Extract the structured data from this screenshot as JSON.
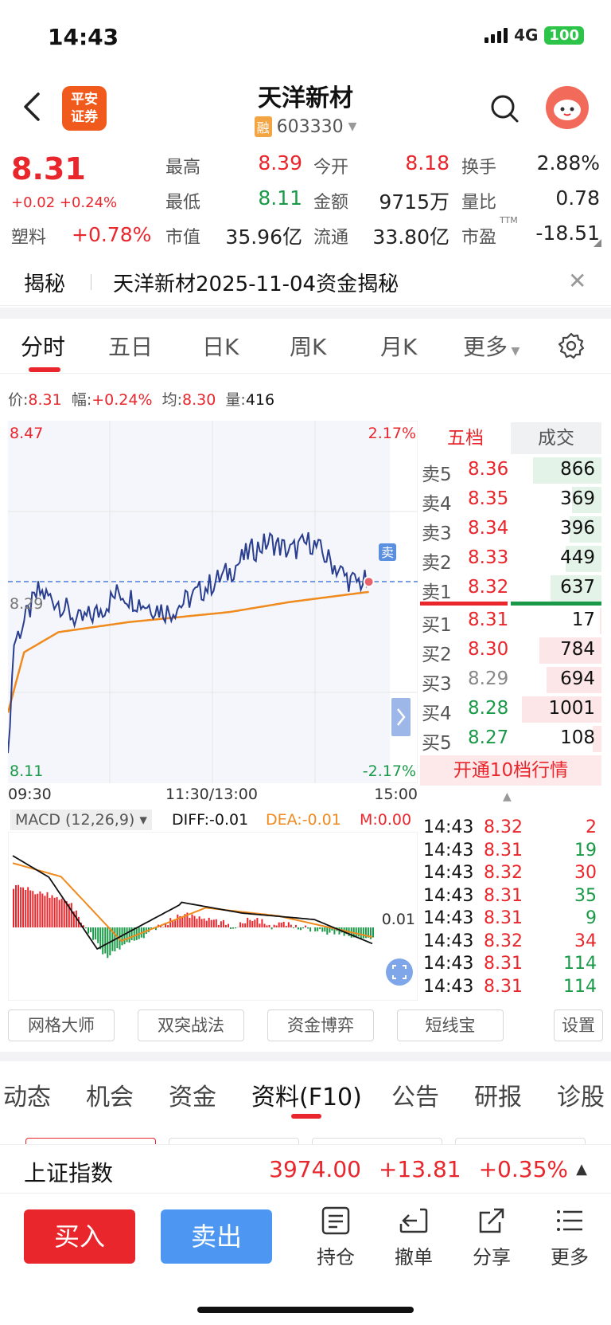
{
  "status": {
    "time": "14:43",
    "network": "4G",
    "battery": "100"
  },
  "header": {
    "broker_logo_line1": "平安",
    "broker_logo_line2": "证券",
    "title": "天洋新材",
    "margin_badge": "融",
    "code": "603330"
  },
  "quote": {
    "price": "8.31",
    "change": "+0.02 +0.24%",
    "sector_name": "塑料",
    "sector_change": "+0.78%",
    "high_label": "最高",
    "high": "8.39",
    "low_label": "最低",
    "low": "8.11",
    "mktcap_label": "市值",
    "mktcap": "35.96亿",
    "open_label": "今开",
    "open": "8.18",
    "amount_label": "金额",
    "amount": "9715万",
    "float_label": "流通",
    "float": "33.80亿",
    "turnover_label": "换手",
    "turnover": "2.88%",
    "volratio_label": "量比",
    "volratio": "0.78",
    "pe_label": "市盈",
    "pe_sup": "TTM",
    "pe": "-18.51"
  },
  "banner": {
    "tag": "揭秘",
    "text": "天洋新材2025-11-04资金揭秘"
  },
  "chart_tabs": [
    "分时",
    "五日",
    "日K",
    "周K",
    "月K",
    "更多"
  ],
  "info_line": {
    "price_label": "价:",
    "price": "8.31",
    "amp_label": "幅:",
    "amp": "+0.24%",
    "avg_label": "均:",
    "avg": "8.30",
    "vol_label": "量:",
    "vol": "416"
  },
  "chart_labels": {
    "top_price": "8.47",
    "top_pct": "2.17%",
    "mid_price": "8.29",
    "bottom_price": "8.11",
    "bottom_pct": "-2.17%",
    "t_start": "09:30",
    "t_mid": "11:30/13:00",
    "t_end": "15:00",
    "sell_marker": "卖"
  },
  "macd": {
    "selector": "MACD (12,26,9)",
    "diff": "DIFF:-0.01",
    "dea": "DEA:-0.01",
    "m": "M:0.00",
    "axis_label": "0.01"
  },
  "order_book": {
    "tab_active": "五档",
    "tab_other": "成交",
    "asks": [
      {
        "label": "卖5",
        "price": "8.36",
        "vol": "866",
        "depth": 0.86
      },
      {
        "label": "卖4",
        "price": "8.35",
        "vol": "369",
        "depth": 0.37
      },
      {
        "label": "卖3",
        "price": "8.34",
        "vol": "396",
        "depth": 0.4
      },
      {
        "label": "卖2",
        "price": "8.33",
        "vol": "449",
        "depth": 0.45
      },
      {
        "label": "卖1",
        "price": "8.32",
        "vol": "637",
        "depth": 0.64
      }
    ],
    "bids": [
      {
        "label": "买1",
        "price": "8.31",
        "vol": "17",
        "depth": 0.02,
        "color": "red"
      },
      {
        "label": "买2",
        "price": "8.30",
        "vol": "784",
        "depth": 0.78,
        "color": "red"
      },
      {
        "label": "买3",
        "price": "8.29",
        "vol": "694",
        "depth": 0.69,
        "color": "gray"
      },
      {
        "label": "买4",
        "price": "8.28",
        "vol": "1001",
        "depth": 1.0,
        "color": "green"
      },
      {
        "label": "买5",
        "price": "8.27",
        "vol": "108",
        "depth": 0.11,
        "color": "green"
      }
    ],
    "upgrade": "开通10档行情"
  },
  "ticks": [
    {
      "time": "14:43",
      "price": "8.32",
      "vol": "2",
      "pc": "red",
      "vc": "red"
    },
    {
      "time": "14:43",
      "price": "8.31",
      "vol": "19",
      "pc": "red",
      "vc": "green"
    },
    {
      "time": "14:43",
      "price": "8.32",
      "vol": "30",
      "pc": "red",
      "vc": "red"
    },
    {
      "time": "14:43",
      "price": "8.31",
      "vol": "35",
      "pc": "red",
      "vc": "green"
    },
    {
      "time": "14:43",
      "price": "8.31",
      "vol": "9",
      "pc": "red",
      "vc": "green"
    },
    {
      "time": "14:43",
      "price": "8.32",
      "vol": "34",
      "pc": "red",
      "vc": "red"
    },
    {
      "time": "14:43",
      "price": "8.31",
      "vol": "114",
      "pc": "red",
      "vc": "green"
    },
    {
      "time": "14:43",
      "price": "8.31",
      "vol": "114",
      "pc": "red",
      "vc": "green"
    }
  ],
  "tools": [
    "网格大师",
    "双突战法",
    "资金博弈",
    "短线宝",
    "设置"
  ],
  "info_tabs": [
    "动态",
    "机会",
    "资金",
    "资料(F10)",
    "公告",
    "研报",
    "诊股"
  ],
  "index_bar": {
    "name": "上证指数",
    "value": "3974.00",
    "change": "+13.81",
    "pct": "+0.35%"
  },
  "actions": {
    "buy": "买入",
    "sell": "卖出",
    "hold": "持仓",
    "cancel": "撤单",
    "share": "分享",
    "more": "更多"
  },
  "colors": {
    "up": "#e8262c",
    "down": "#1a9a48",
    "price_line": "#2a3e8f",
    "avg_line": "#f08a1c",
    "sell_blue": "#4d97f3"
  }
}
